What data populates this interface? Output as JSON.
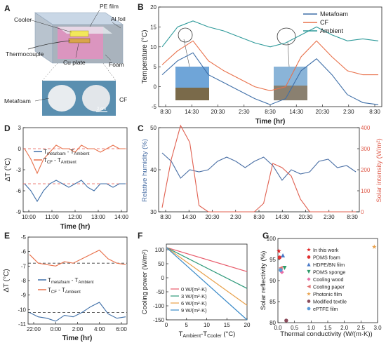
{
  "panels": {
    "A": {
      "letter": "A",
      "labels": {
        "cooler": "Cooler",
        "pe_film": "PE film",
        "al_foil": "Al foil",
        "thermocouple": "Thermocouple",
        "cu_plate": "Cu plate",
        "foam": "Foam",
        "metafoam": "Metafoam",
        "cf": "CF",
        "scale": "2 cm"
      }
    },
    "B": {
      "letter": "B"
    },
    "C": {
      "letter": "C"
    },
    "D": {
      "letter": "D"
    },
    "E": {
      "letter": "E"
    },
    "F": {
      "letter": "F"
    },
    "G": {
      "letter": "G"
    }
  },
  "colors": {
    "metafoam": "#3f6fa8",
    "cf": "#e8704a",
    "ambient": "#2e9a9a",
    "humidity": "#4a6fa5",
    "solar": "#e06050",
    "dash": "#e85a4f"
  },
  "chart_data": [
    {
      "panel": "B",
      "type": "line",
      "xlabel": "Time (hr)",
      "ylabel": "Temperature (°C)",
      "x_ticks": [
        "8:30",
        "14:30",
        "20:30",
        "2:30",
        "8:30",
        "14:30",
        "20:30",
        "2:30",
        "8:30"
      ],
      "ylim": [
        -5,
        20
      ],
      "y_ticks": [
        -5,
        0,
        5,
        10,
        15,
        20
      ],
      "legend": "top-right",
      "series": [
        {
          "name": "Metafoam",
          "color": "#3f6fa8",
          "values": [
            3,
            6.5,
            8.5,
            3,
            1,
            -1,
            -3,
            -4.5,
            -3,
            4,
            7,
            3,
            -2,
            -4,
            -4.5
          ]
        },
        {
          "name": "CF",
          "color": "#e8704a",
          "values": [
            5.5,
            9,
            11.5,
            6.5,
            4,
            2,
            0,
            -1,
            0,
            7.5,
            11.5,
            7.5,
            4,
            3,
            3
          ]
        },
        {
          "name": "Ambient",
          "color": "#2e9a9a",
          "values": [
            10,
            15,
            16.5,
            15,
            14,
            12.5,
            11,
            10,
            11,
            13,
            15,
            13,
            11.5,
            12,
            11.5
          ]
        }
      ]
    },
    {
      "panel": "C",
      "type": "line",
      "xlabel": "",
      "ylabel_left": "Relative humidity (%)",
      "ylabel_right": "Solar intensity (W/m²)",
      "x_ticks": [
        "8:30",
        "14:30",
        "20:30",
        "2:30",
        "8:30",
        "14:30",
        "20:30",
        "2:30",
        "8:30"
      ],
      "ylim_left": [
        30,
        50
      ],
      "y_ticks_left": [
        30,
        40,
        50
      ],
      "ylim_right": [
        0,
        400
      ],
      "y_ticks_right": [
        0,
        100,
        200,
        300,
        400
      ],
      "series": [
        {
          "name": "Relative humidity",
          "axis": "left",
          "color": "#4a6fa5",
          "values": [
            44,
            42,
            38,
            40,
            39.5,
            40,
            42,
            43,
            42,
            40.5,
            42,
            43,
            41,
            37.5,
            40,
            39,
            39.5,
            42,
            42.5,
            40.5,
            41,
            39.5
          ]
        },
        {
          "name": "Solar intensity",
          "axis": "right",
          "color": "#e06050",
          "values": [
            20,
            250,
            410,
            330,
            30,
            0,
            0,
            0,
            0,
            0,
            0,
            40,
            230,
            210,
            170,
            60,
            0,
            0,
            0,
            0,
            0,
            0
          ]
        }
      ]
    },
    {
      "panel": "D",
      "type": "line",
      "xlabel": "Time (hr)",
      "ylabel": "ΔT (°C)",
      "x_ticks": [
        "10:00",
        "11:00",
        "12:00",
        "13:00",
        "14:00"
      ],
      "ylim": [
        -9,
        3
      ],
      "y_ticks": [
        -9,
        -6,
        -3,
        0,
        3
      ],
      "series": [
        {
          "name": "CF - Ambient",
          "label_main": "T",
          "label_sub": "CF",
          "label_mid": " - T",
          "label_sub2": "Ambient",
          "color": "#e8704a",
          "values": [
            0,
            -1.5,
            -3.5,
            -1.5,
            -0.5,
            0.5,
            0,
            0,
            -0.5,
            0.5,
            0,
            0,
            -0.5,
            0,
            0.5,
            0,
            0
          ]
        },
        {
          "name": "Metafoam - Ambient",
          "label_main": "T",
          "label_sub": "metafoam",
          "label_mid": " - T",
          "label_sub2": "Ambient",
          "color": "#3f6fa8",
          "values": [
            -5,
            -6,
            -7.5,
            -6,
            -5,
            -4.5,
            -5,
            -5.5,
            -5,
            -4.5,
            -5.5,
            -6,
            -5,
            -5,
            -5.5,
            -5,
            -5
          ]
        }
      ],
      "dashed_levels": [
        0,
        -5
      ]
    },
    {
      "panel": "E",
      "type": "line",
      "xlabel": "Time (hr)",
      "ylabel": "ΔT (°C)",
      "x_ticks": [
        "22:00",
        "0:00",
        "2:00",
        "4:00",
        "6:00"
      ],
      "ylim": [
        -11,
        -5
      ],
      "y_ticks": [
        -11,
        -10,
        -9,
        -8,
        -7,
        -6,
        -5
      ],
      "series": [
        {
          "name": "CF - Ambient",
          "label_main": "T",
          "label_sub": "CF",
          "label_mid": " - T",
          "label_sub2": "Ambient",
          "color": "#e8704a",
          "values": [
            -6.2,
            -6.8,
            -6.9,
            -7,
            -6.7,
            -6.8,
            -6.5,
            -6.2,
            -5.9,
            -6.5,
            -6.8,
            -6.9
          ]
        },
        {
          "name": "Metafoam - Ambient",
          "label_main": "T",
          "label_sub": "metafoam",
          "label_mid": " - T",
          "label_sub2": "Ambient",
          "color": "#3f6fa8",
          "values": [
            -10.2,
            -10.5,
            -10.6,
            -10.8,
            -10.4,
            -10.5,
            -10.2,
            -9.8,
            -9.5,
            -10.3,
            -10.6,
            -10.5
          ]
        }
      ],
      "dashed_levels": [
        -6.8,
        -10.2
      ]
    },
    {
      "panel": "F",
      "type": "line",
      "xlabel": "T_Ambient - T_Cooler (°C)",
      "xlabel_main": "T",
      "xlabel_sub": "Ambient",
      "xlabel_mid": "-T",
      "xlabel_sub2": "Cooler",
      "xlabel_unit": " (°C)",
      "ylabel": "Cooling power (W/m²)",
      "x": [
        0,
        20
      ],
      "xlim": [
        0,
        20
      ],
      "x_ticks": [
        0,
        5,
        10,
        15,
        20
      ],
      "ylim": [
        -150,
        120
      ],
      "y_ticks": [
        -150,
        -100,
        -50,
        0,
        50,
        100
      ],
      "legend": "bottom-left",
      "series": [
        {
          "name": "0 W/(m²·K)",
          "color": "#e85a6a",
          "values": [
            108,
            22
          ]
        },
        {
          "name": "3 W/(m²·K)",
          "color": "#2e9a7a",
          "values": [
            108,
            -38
          ]
        },
        {
          "name": "6 W/(m²·K)",
          "color": "#e8a04a",
          "values": [
            108,
            -98
          ]
        },
        {
          "name": "9 W/(m²·K)",
          "color": "#3a8ac8",
          "values": [
            108,
            -158
          ]
        }
      ]
    },
    {
      "panel": "G",
      "type": "scatter",
      "xlabel": "Thermal conductivity (W/(m·K))",
      "ylabel": "Solar reflectivity (%)",
      "xlim": [
        0,
        3
      ],
      "x_ticks": [
        "0.0",
        "0.5",
        "1.0",
        "1.5",
        "2.0",
        "2.5",
        "3.0"
      ],
      "ylim": [
        80,
        100
      ],
      "y_ticks": [
        80,
        85,
        90,
        95,
        100
      ],
      "legend": "right",
      "points": [
        {
          "name": "In this work",
          "x": 0.03,
          "y": 97,
          "color": "#e02020",
          "marker": "star"
        },
        {
          "name": "PDMS foam",
          "x": 0.05,
          "y": 95.5,
          "color": "#e03030",
          "marker": "circle"
        },
        {
          "name": "HDPE/BN film",
          "x": 0.15,
          "y": 96,
          "color": "#4a7ac8",
          "marker": "triangle-up"
        },
        {
          "name": "PDMS sponge",
          "x": 0.2,
          "y": 93,
          "color": "#2e9a6a",
          "marker": "triangle-down"
        },
        {
          "name": "Cooling wood",
          "x": 0.12,
          "y": 92,
          "color": "#e870a8",
          "marker": "diamond"
        },
        {
          "name": "Cooling paper",
          "x": 0.08,
          "y": 93,
          "color": "#e07070",
          "marker": "triangle-left"
        },
        {
          "name": "Photonic film",
          "x": 2.9,
          "y": 98,
          "color": "#e8a04a",
          "marker": "star"
        },
        {
          "name": "Modified textile",
          "x": 0.25,
          "y": 80.5,
          "color": "#8a4a5a",
          "marker": "circle"
        },
        {
          "name": "ePTFE film",
          "x": 0.08,
          "y": 92.5,
          "color": "#5a9ad8",
          "marker": "hexagon"
        }
      ]
    }
  ]
}
